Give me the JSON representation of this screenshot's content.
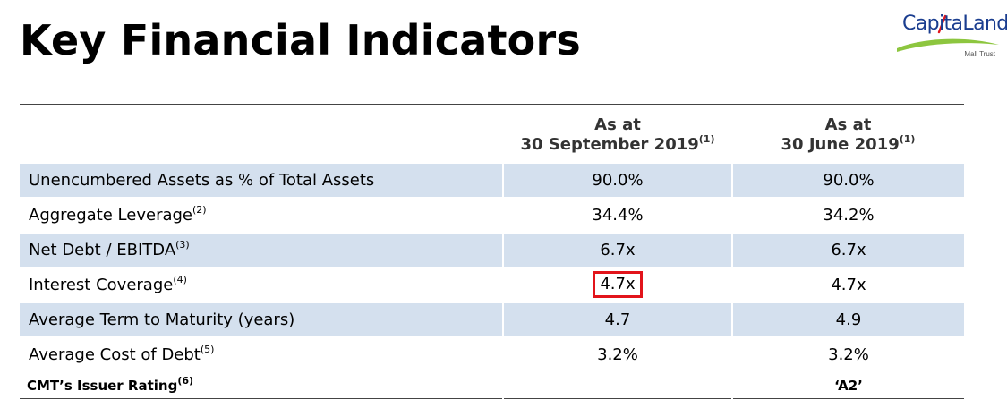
{
  "title": "Key Financial Indicators",
  "logo": {
    "name": "CapitaLand",
    "subtitle": "Mall Trust",
    "colors": {
      "text": "#1a3d8f",
      "swoosh": "#8dc63f",
      "accent": "#e2141b"
    }
  },
  "table": {
    "headers": [
      {
        "line1": "As at",
        "line2": "30 September 2019",
        "note": "(1)"
      },
      {
        "line1": "As at",
        "line2": "30 June 2019",
        "note": "(1)"
      }
    ],
    "rows": [
      {
        "label": "Unencumbered Assets as % of Total Assets",
        "note": "",
        "sep": "90.0%",
        "jun": "90.0%"
      },
      {
        "label": "Aggregate Leverage",
        "note": "(2)",
        "sep": "34.4%",
        "jun": "34.2%"
      },
      {
        "label": "Net Debt / EBITDA",
        "note": "(3)",
        "sep": "6.7x",
        "jun": "6.7x"
      },
      {
        "label": "Interest Coverage",
        "note": "(4)",
        "sep": "4.7x",
        "jun": "4.7x"
      },
      {
        "label": "Average Term to Maturity (years)",
        "note": "",
        "sep": "4.7",
        "jun": "4.9"
      },
      {
        "label": "Average Cost of Debt",
        "note": "(5)",
        "sep": "3.2%",
        "jun": "3.2%"
      }
    ],
    "rating": {
      "label": "CMT’s Issuer Rating",
      "note": "(6)",
      "sep": "",
      "jun": "‘A2’"
    }
  },
  "highlight_color": "#e2141b",
  "row_shade_color": "#d4e0ee"
}
